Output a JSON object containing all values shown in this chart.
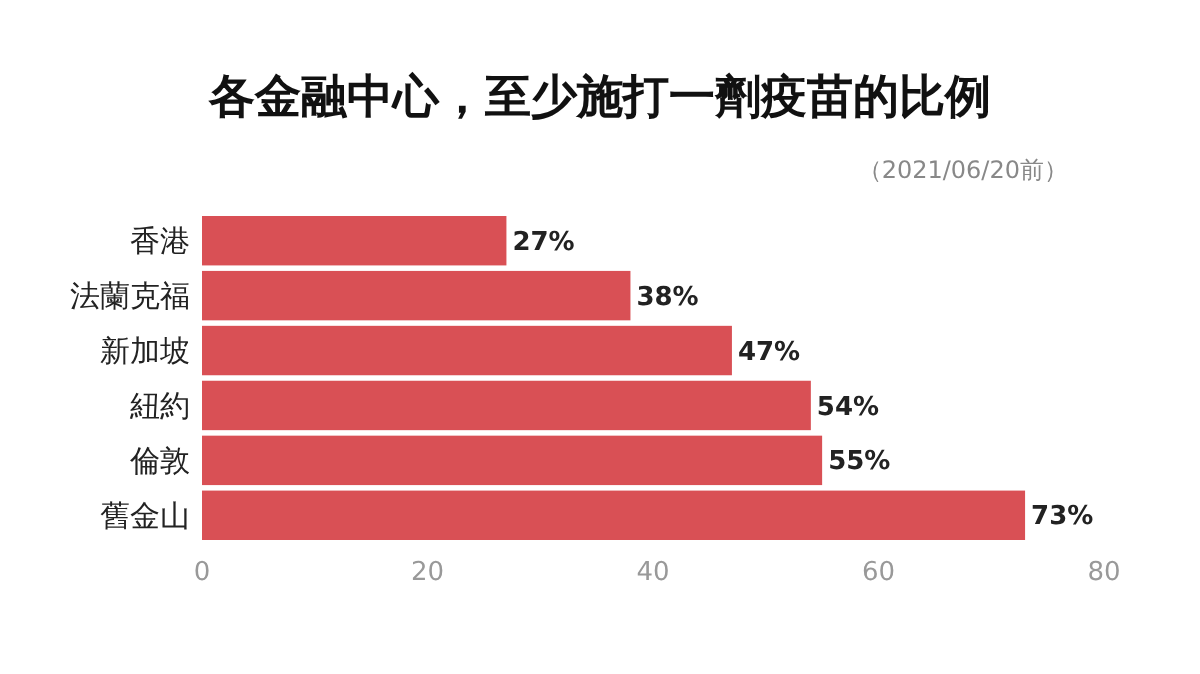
{
  "chart_data": {
    "type": "bar",
    "orientation": "horizontal",
    "title": "各金融中心，至少施打一劑疫苗的比例",
    "subtitle": "（2021/06/20前）",
    "categories": [
      "香港",
      "法蘭克福",
      "新加坡",
      "紐約",
      "倫敦",
      "舊金山"
    ],
    "values": [
      27,
      38,
      47,
      54,
      55,
      73
    ],
    "value_labels": [
      "27%",
      "38%",
      "47%",
      "54%",
      "55%",
      "73%"
    ],
    "color": "#d95055",
    "xlim": [
      0,
      80
    ],
    "xticks": [
      0,
      20,
      40,
      60,
      80
    ],
    "grid": false
  }
}
